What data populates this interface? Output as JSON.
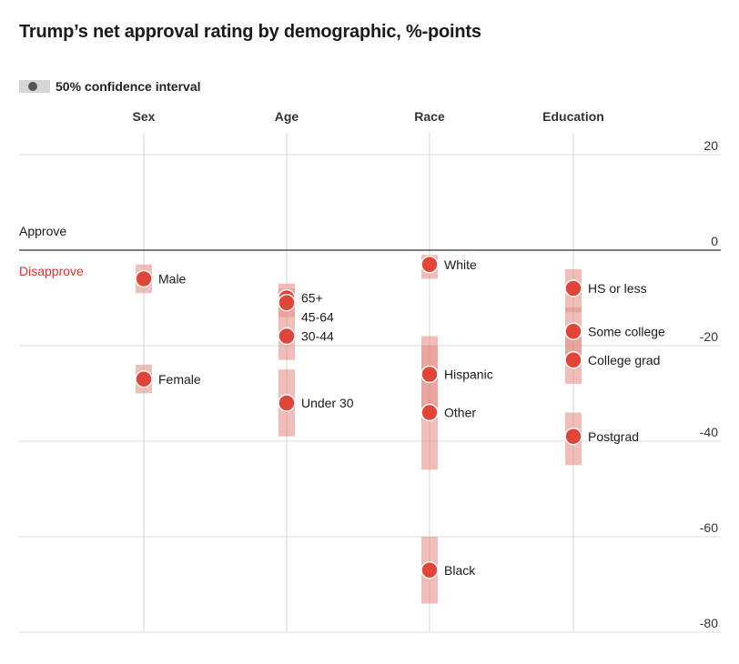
{
  "header": {
    "title": "Trump’s net approval rating by demographic, %-points"
  },
  "legend": {
    "label": "50% confidence interval"
  },
  "chart_data": {
    "type": "scatter",
    "title": "Trump’s net approval rating by demographic, %-points",
    "ylim": [
      -80,
      20
    ],
    "yticks": [
      20,
      0,
      -20,
      -40,
      -60,
      -80
    ],
    "zero_labels": {
      "above": "Approve",
      "below": "Disapprove"
    },
    "grid": true,
    "colors": {
      "point": "#e0453a",
      "interval": "#e8918b",
      "disapprove_text": "#c7382f",
      "zero_line": "#555555",
      "grid": "#dddddd"
    },
    "groups": [
      {
        "name": "Sex",
        "items": [
          {
            "label": "Male",
            "value": -6,
            "ci": [
              -9,
              -3
            ]
          },
          {
            "label": "Female",
            "value": -27,
            "ci": [
              -30,
              -24
            ]
          }
        ]
      },
      {
        "name": "Age",
        "items": [
          {
            "label": "65+",
            "value": -10,
            "ci": [
              -14,
              -7
            ]
          },
          {
            "label": "45-64",
            "value": -11,
            "ci": [
              -14,
              -8
            ]
          },
          {
            "label": "30-44",
            "value": -18,
            "ci": [
              -23,
              -14
            ]
          },
          {
            "label": "Under 30",
            "value": -32,
            "ci": [
              -39,
              -25
            ]
          }
        ]
      },
      {
        "name": "Race",
        "items": [
          {
            "label": "White",
            "value": -3,
            "ci": [
              -6,
              -1
            ]
          },
          {
            "label": "Hispanic",
            "value": -26,
            "ci": [
              -35,
              -18
            ]
          },
          {
            "label": "Other",
            "value": -34,
            "ci": [
              -46,
              -20
            ]
          },
          {
            "label": "Black",
            "value": -67,
            "ci": [
              -74,
              -60
            ]
          }
        ]
      },
      {
        "name": "Education",
        "items": [
          {
            "label": "HS or less",
            "value": -8,
            "ci": [
              -13,
              -4
            ]
          },
          {
            "label": "Some college",
            "value": -17,
            "ci": [
              -22,
              -12
            ]
          },
          {
            "label": "College grad",
            "value": -23,
            "ci": [
              -28,
              -18
            ]
          },
          {
            "label": "Postgrad",
            "value": -39,
            "ci": [
              -45,
              -34
            ]
          }
        ]
      }
    ]
  }
}
